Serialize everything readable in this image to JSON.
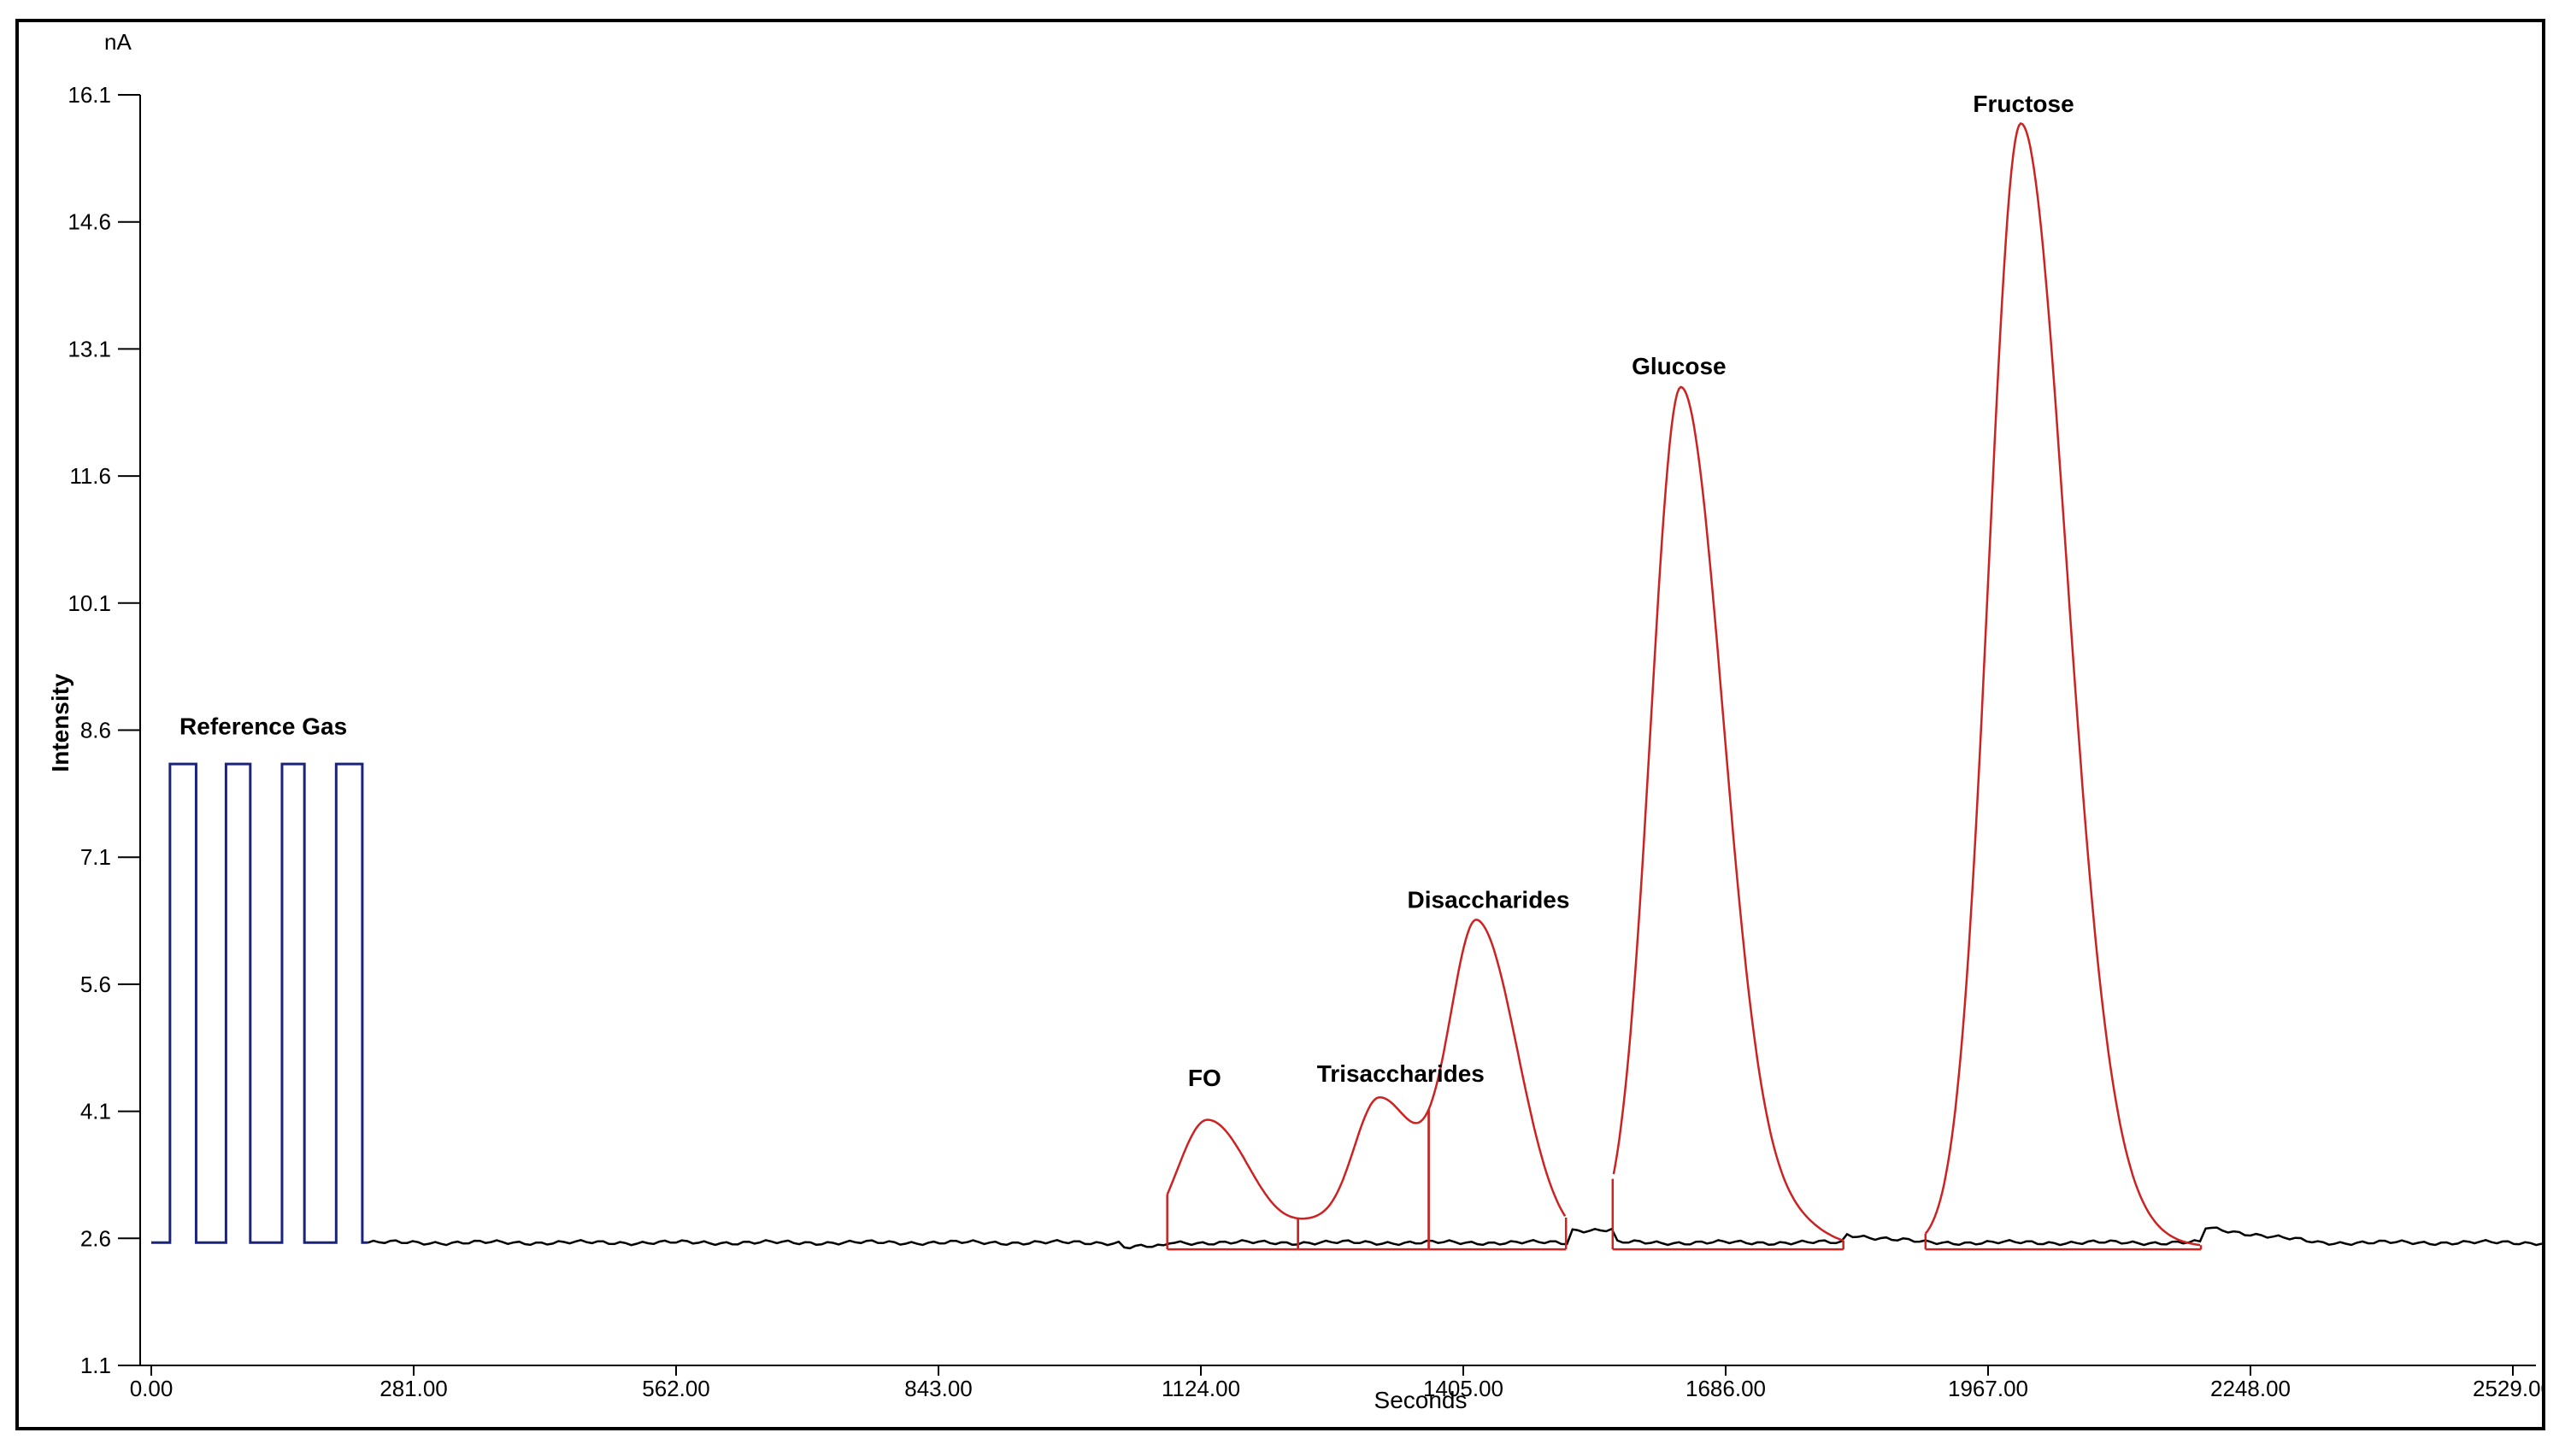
{
  "chart_data": {
    "type": "line",
    "title": "",
    "xlabel": "Seconds",
    "ylabel": "Intensity",
    "yunit": "nA",
    "xlim": [
      0,
      2560
    ],
    "ylim": [
      1.1,
      16.1
    ],
    "x_ticks": [
      "0.00",
      "281.00",
      "562.00",
      "843.00",
      "1124.00",
      "1405.00",
      "1686.00",
      "1967.00",
      "2248.00",
      "2529.00"
    ],
    "x_tick_values": [
      0,
      281,
      562,
      843,
      1124,
      1405,
      1686,
      1967,
      2248,
      2529
    ],
    "y_ticks": [
      "1.1",
      "2.6",
      "4.1",
      "5.6",
      "7.1",
      "8.6",
      "10.1",
      "11.6",
      "13.1",
      "14.6",
      "16.1"
    ],
    "y_tick_values": [
      1.1,
      2.6,
      4.1,
      5.6,
      7.1,
      8.6,
      10.1,
      11.6,
      13.1,
      14.6,
      16.1
    ],
    "grid": false,
    "baseline": 2.55,
    "series": [
      {
        "color": "#1a237e",
        "pulses": [
          [
            20,
            48
          ],
          [
            80,
            106
          ],
          [
            140,
            164
          ],
          [
            198,
            226
          ]
        ],
        "pulse_top": 8.2
      },
      {
        "color": "#cc2222",
        "peaks": [
          {
            "center": 1131,
            "height": 4.05,
            "width": 34
          },
          {
            "center": 1315,
            "height": 4.3,
            "width": 30
          },
          {
            "center": 1420,
            "height": 6.35,
            "width": 32
          },
          {
            "center": 1638,
            "height": 12.7,
            "width": 34
          },
          {
            "center": 2002,
            "height": 15.8,
            "width": 36
          }
        ]
      },
      {
        "color": "#000000"
      }
    ],
    "integration_segments": [
      [
        1088,
        1228
      ],
      [
        1228,
        1368
      ],
      [
        1368,
        1515
      ],
      [
        1565,
        1812
      ],
      [
        1900,
        2195
      ]
    ],
    "annotations": [
      {
        "text": "Reference Gas",
        "x": 120,
        "y": 8.55
      },
      {
        "text": "FO",
        "x": 1128,
        "y": 4.4
      },
      {
        "text": "Trisaccharides",
        "x": 1338,
        "y": 4.45
      },
      {
        "text": "Disaccharides",
        "x": 1432,
        "y": 6.5
      },
      {
        "text": "Glucose",
        "x": 1636,
        "y": 12.8
      },
      {
        "text": "Fructose",
        "x": 2005,
        "y": 15.9
      }
    ],
    "colors": {
      "axis": "#000000",
      "reference": "#1a237e",
      "peaks": "#cc2222",
      "baseline": "#000000"
    }
  }
}
